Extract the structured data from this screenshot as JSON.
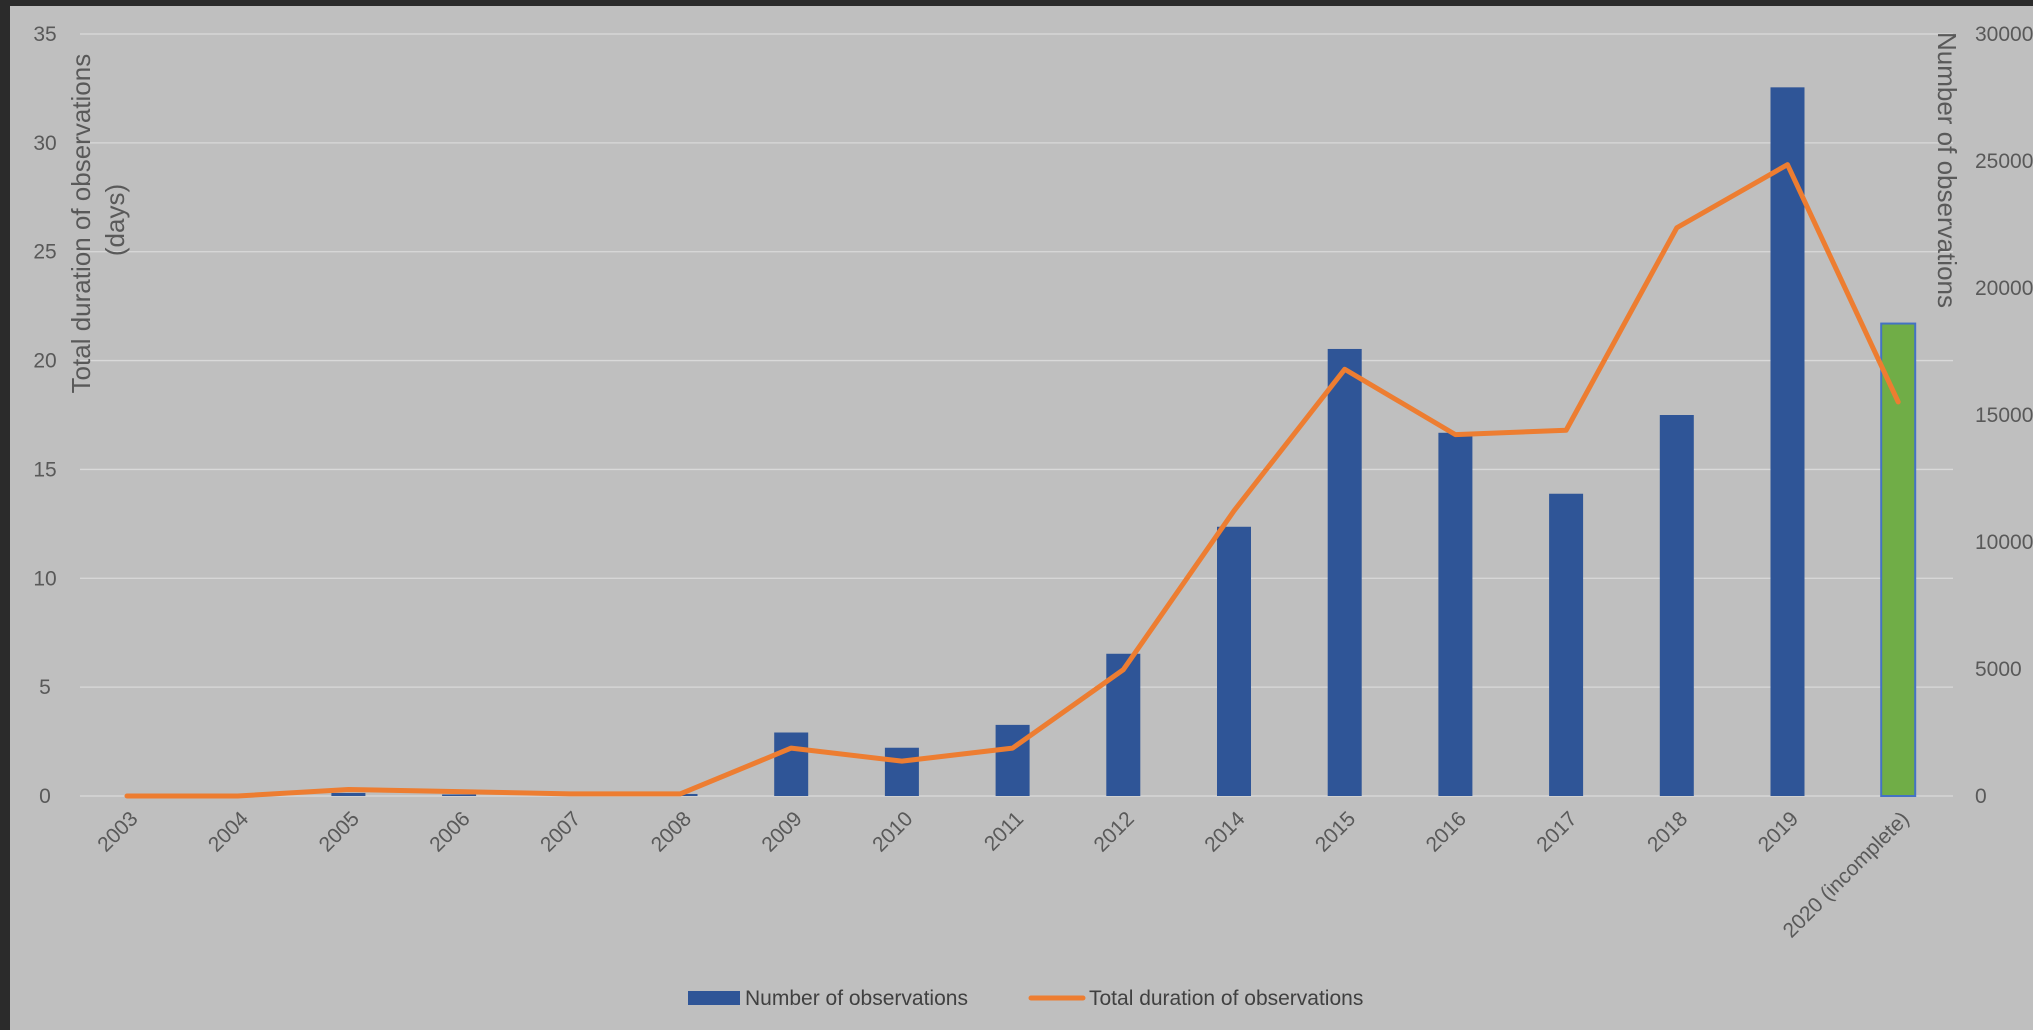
{
  "chart_data": {
    "type": "bar",
    "categories": [
      "2003",
      "2004",
      "2005",
      "2006",
      "2007",
      "2008",
      "2009",
      "2010",
      "2011",
      "2012",
      "2014",
      "2015",
      "2016",
      "2017",
      "2018",
      "2019",
      "2020 (incomplete)"
    ],
    "series": [
      {
        "name": "Number of observations",
        "type": "bar",
        "axis": "right",
        "color": "#2f5597",
        "highlight": {
          "index": 16,
          "color": "#70ad47"
        },
        "values": [
          0,
          0,
          120,
          60,
          40,
          80,
          2500,
          1900,
          2800,
          5600,
          10600,
          17600,
          14300,
          11900,
          15000,
          27900,
          18600
        ]
      },
      {
        "name": "Total duration of observations",
        "type": "line",
        "axis": "left",
        "color": "#ed7d31",
        "values": [
          0.0,
          0.0,
          0.3,
          0.2,
          0.1,
          0.1,
          2.2,
          1.6,
          2.2,
          5.8,
          13.1,
          19.6,
          16.6,
          16.8,
          26.1,
          29.0,
          18.1
        ]
      }
    ],
    "y_left": {
      "label": "Total duration of observations (days)",
      "label_lines": [
        "Total duration of observations",
        "(days)"
      ],
      "ylim": [
        0,
        35
      ],
      "ticks": [
        "0",
        "5",
        "10",
        "15",
        "20",
        "25",
        "30",
        "35"
      ]
    },
    "y_right": {
      "label": "Number of observations",
      "ylim": [
        0,
        30000
      ],
      "ticks": [
        "0",
        "5000",
        "10000",
        "15000",
        "20000",
        "25000",
        "30000"
      ]
    },
    "grid": true,
    "legend": {
      "position": "bottom",
      "entries": [
        "Number of observations",
        "Total duration of observations"
      ]
    },
    "colors": {
      "background": "#bfbfbf",
      "gridline": "#d9d9d9",
      "axis_text": "#595959"
    }
  }
}
